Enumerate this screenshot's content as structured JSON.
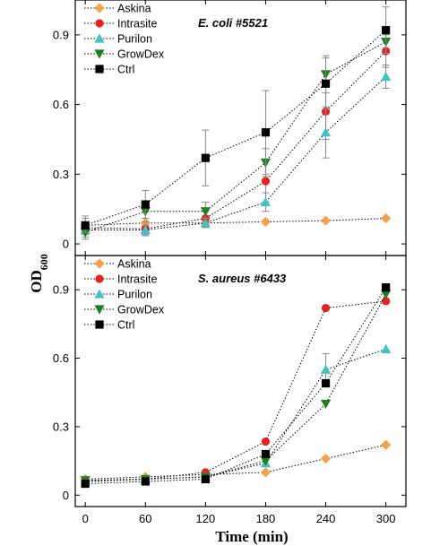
{
  "chart_data": [
    {
      "type": "line",
      "title": "E. coli #5521",
      "title_italic_part": "E. coli",
      "title_plain_part": "#5521",
      "x": [
        0,
        60,
        120,
        180,
        240,
        300
      ],
      "xlim": [
        -10,
        320
      ],
      "ylim": [
        -0.05,
        1.05
      ],
      "yticks": [
        0,
        0.3,
        0.6,
        0.9
      ],
      "ytick_labels": [
        "0",
        "0.3",
        "0.6",
        "0.9"
      ],
      "legend_position": "top-left",
      "series": [
        {
          "name": "Askina",
          "marker": "diamond",
          "color": "#F4A14B",
          "values": [
            0.08,
            0.09,
            0.09,
            0.095,
            0.1,
            0.11
          ],
          "errors": [
            0.01,
            0.01,
            0.01,
            0.01,
            0.01,
            0.01
          ]
        },
        {
          "name": "Intrasite",
          "marker": "circle",
          "color": "#E8201F",
          "values": [
            0.07,
            0.065,
            0.11,
            0.27,
            0.57,
            0.83
          ],
          "errors": [
            0.05,
            0.03,
            0.03,
            0.09,
            0.12,
            0.07
          ]
        },
        {
          "name": "Purilon",
          "marker": "triangle-up",
          "color": "#3EC4C4",
          "values": [
            0.06,
            0.06,
            0.09,
            0.18,
            0.48,
            0.72
          ],
          "errors": [
            0.02,
            0.02,
            0.02,
            0.04,
            0.11,
            0.05
          ]
        },
        {
          "name": "GrowDex",
          "marker": "triangle-down",
          "color": "#1E7F1E",
          "values": [
            0.05,
            0.14,
            0.14,
            0.35,
            0.73,
            0.87
          ],
          "errors": [
            0.02,
            0.03,
            0.04,
            0.06,
            0.08,
            0.05
          ]
        },
        {
          "name": "Ctrl",
          "marker": "square",
          "color": "#000000",
          "values": [
            0.08,
            0.17,
            0.37,
            0.48,
            0.69,
            0.92
          ],
          "errors": [
            0.03,
            0.06,
            0.12,
            0.18,
            0.11,
            0.1
          ]
        }
      ]
    },
    {
      "type": "line",
      "title": "S. aureus #6433",
      "title_italic_part": "S. aureus",
      "title_plain_part": "#6433",
      "x": [
        0,
        60,
        120,
        180,
        240,
        300
      ],
      "xlim": [
        -10,
        320
      ],
      "ylim": [
        -0.05,
        1.05
      ],
      "yticks": [
        0,
        0.3,
        0.6,
        0.9
      ],
      "ytick_labels": [
        "0",
        "0.3",
        "0.6",
        "0.9"
      ],
      "legend_position": "top-left",
      "series": [
        {
          "name": "Askina",
          "marker": "diamond",
          "color": "#F4A14B",
          "values": [
            0.07,
            0.08,
            0.09,
            0.1,
            0.16,
            0.22
          ],
          "errors": [
            0.005,
            0.005,
            0.005,
            0.005,
            0.005,
            0.01
          ]
        },
        {
          "name": "Intrasite",
          "marker": "circle",
          "color": "#E8201F",
          "values": [
            0.06,
            0.07,
            0.1,
            0.235,
            0.82,
            0.85
          ],
          "errors": [
            0.005,
            0.005,
            0.005,
            0.01,
            0.01,
            0.01
          ]
        },
        {
          "name": "Purilon",
          "marker": "triangle-up",
          "color": "#3EC4C4",
          "values": [
            0.06,
            0.07,
            0.08,
            0.14,
            0.55,
            0.64
          ],
          "errors": [
            0.005,
            0.005,
            0.005,
            0.01,
            0.07,
            0.01
          ]
        },
        {
          "name": "GrowDex",
          "marker": "triangle-down",
          "color": "#1E7F1E",
          "values": [
            0.065,
            0.07,
            0.08,
            0.15,
            0.4,
            0.88
          ],
          "errors": [
            0.005,
            0.005,
            0.005,
            0.01,
            0.01,
            0.01
          ]
        },
        {
          "name": "Ctrl",
          "marker": "square",
          "color": "#000000",
          "values": [
            0.05,
            0.06,
            0.07,
            0.18,
            0.49,
            0.91
          ],
          "errors": [
            0.005,
            0.005,
            0.005,
            0.01,
            0.01,
            0.01
          ]
        }
      ]
    }
  ],
  "shared_axes": {
    "ylabel_main": "OD",
    "ylabel_sub": "600",
    "xlabel": "Time (min)",
    "xticks": [
      0,
      60,
      120,
      180,
      240,
      300
    ],
    "xtick_labels": [
      "0",
      "60",
      "120",
      "180",
      "240",
      "300"
    ]
  }
}
